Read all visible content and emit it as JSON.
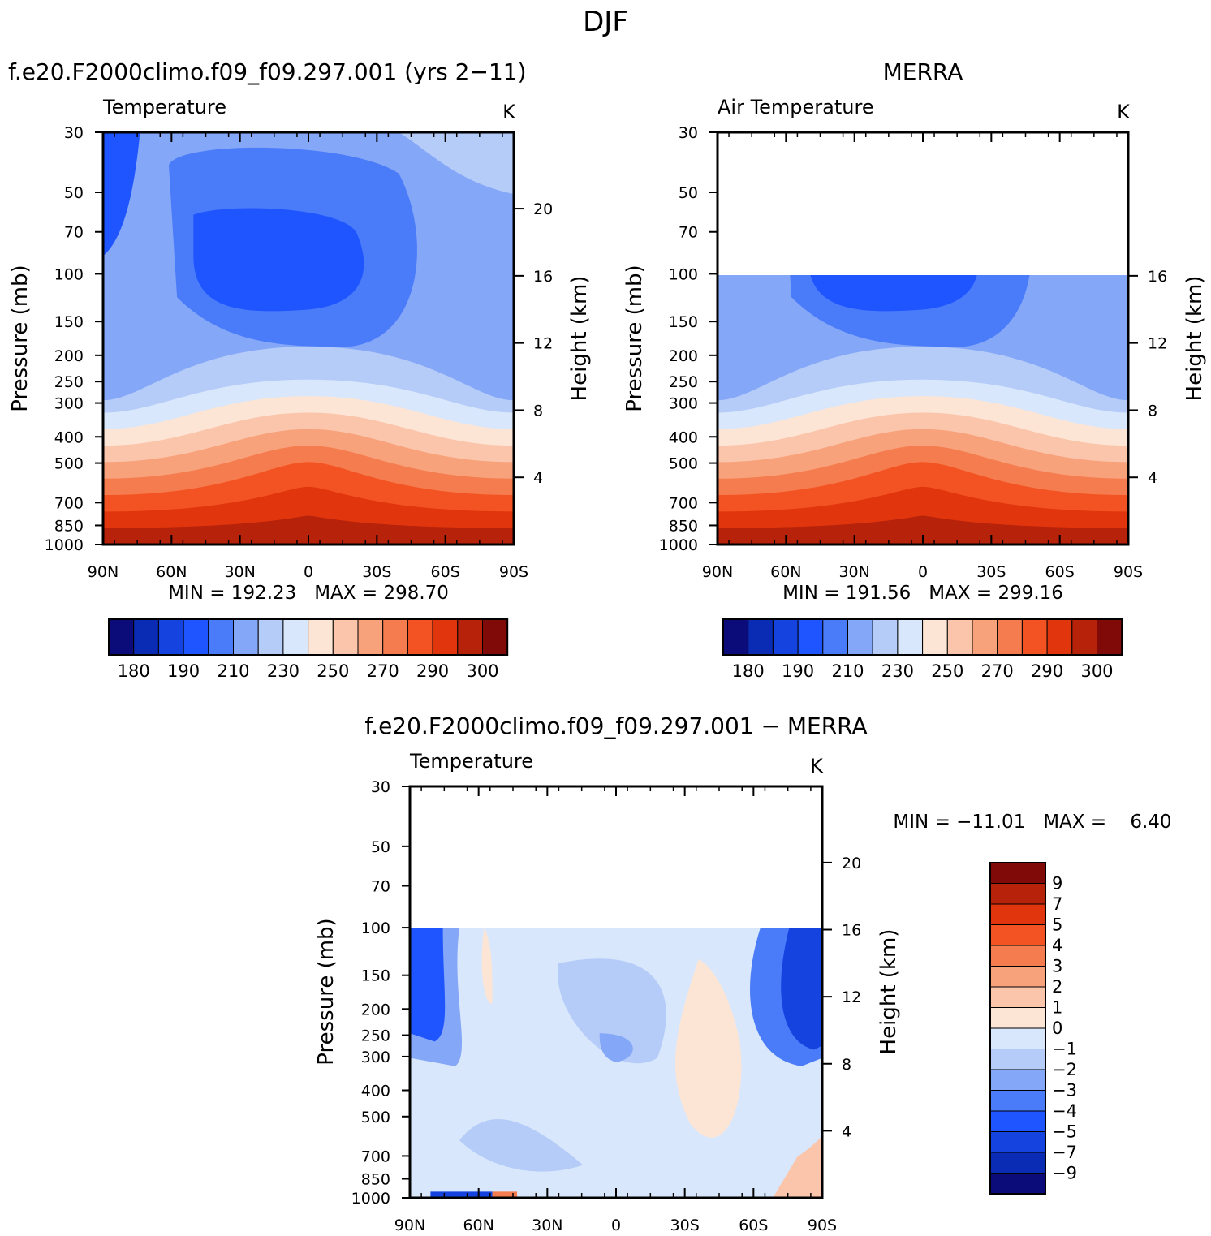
{
  "season": "DJF",
  "colors": {
    "abs_palette": [
      "#0b0c7a",
      "#0a2bb3",
      "#1443e0",
      "#1f55ff",
      "#4a7cfa",
      "#85a7f7",
      "#b5ccf9",
      "#d8e7fb",
      "#fde5d6",
      "#fbc5ab",
      "#f8a27c",
      "#f57c4e",
      "#f35323",
      "#e1360d",
      "#b7220b",
      "#800a08"
    ],
    "diff_palette": [
      "#0b0c7a",
      "#0a2bb3",
      "#1443e0",
      "#1f55ff",
      "#4a7cfa",
      "#85a7f7",
      "#b5ccf9",
      "#d8e7fb",
      "#fde5d6",
      "#fbc5ab",
      "#f8a27c",
      "#f57c4e",
      "#f35323",
      "#e1360d",
      "#b7220b",
      "#800a08"
    ]
  },
  "chart_data": [
    {
      "type": "heatmap",
      "title": "f.e20.F2000climo.f09_f09.297.001 (yrs 2−11)",
      "subtitle_left": "Temperature",
      "units": "K",
      "ylabel": "Pressure (mb)",
      "ylabel2": "Height (km)",
      "x_ticks": [
        "90N",
        "60N",
        "30N",
        "0",
        "30S",
        "60S",
        "90S"
      ],
      "y_ticks": [
        "30",
        "50",
        "70",
        "100",
        "150",
        "200",
        "250",
        "300",
        "400",
        "500",
        "700",
        "850",
        "1000"
      ],
      "y2_ticks": [
        "20",
        "16",
        "12",
        "8",
        "4"
      ],
      "stats": "MIN = 192.23   MAX = 298.70",
      "min": 192.23,
      "max": 298.7,
      "colorbar_labels": [
        "180",
        "190",
        "210",
        "230",
        "250",
        "270",
        "290",
        "300"
      ]
    },
    {
      "type": "heatmap",
      "title": "MERRA",
      "subtitle_left": "Air Temperature",
      "units": "K",
      "ylabel": "Pressure (mb)",
      "ylabel2": "Height (km)",
      "x_ticks": [
        "90N",
        "60N",
        "30N",
        "0",
        "30S",
        "60S",
        "90S"
      ],
      "y_ticks": [
        "30",
        "50",
        "70",
        "100",
        "150",
        "200",
        "250",
        "300",
        "400",
        "500",
        "700",
        "850",
        "1000"
      ],
      "y2_ticks": [
        "16",
        "12",
        "8",
        "4"
      ],
      "stats": "MIN = 191.56   MAX = 299.16",
      "min": 191.56,
      "max": 299.16,
      "colorbar_labels": [
        "180",
        "190",
        "210",
        "230",
        "250",
        "270",
        "290",
        "300"
      ]
    },
    {
      "type": "heatmap",
      "title": "f.e20.F2000climo.f09_f09.297.001 − MERRA",
      "subtitle_left": "Temperature",
      "units": "K",
      "ylabel": "Pressure (mb)",
      "ylabel2": "Height (km)",
      "x_ticks": [
        "90N",
        "60N",
        "30N",
        "0",
        "30S",
        "60S",
        "90S"
      ],
      "y_ticks": [
        "30",
        "50",
        "70",
        "100",
        "150",
        "200",
        "250",
        "300",
        "400",
        "500",
        "700",
        "850",
        "1000"
      ],
      "y2_ticks": [
        "20",
        "16",
        "12",
        "8",
        "4"
      ],
      "stats": "MIN = −11.01   MAX =    6.40",
      "min": -11.01,
      "max": 6.4,
      "colorbar_labels": [
        "9",
        "7",
        "5",
        "4",
        "3",
        "2",
        "1",
        "0",
        "−1",
        "−2",
        "−3",
        "−4",
        "−5",
        "−7",
        "−9"
      ]
    }
  ]
}
